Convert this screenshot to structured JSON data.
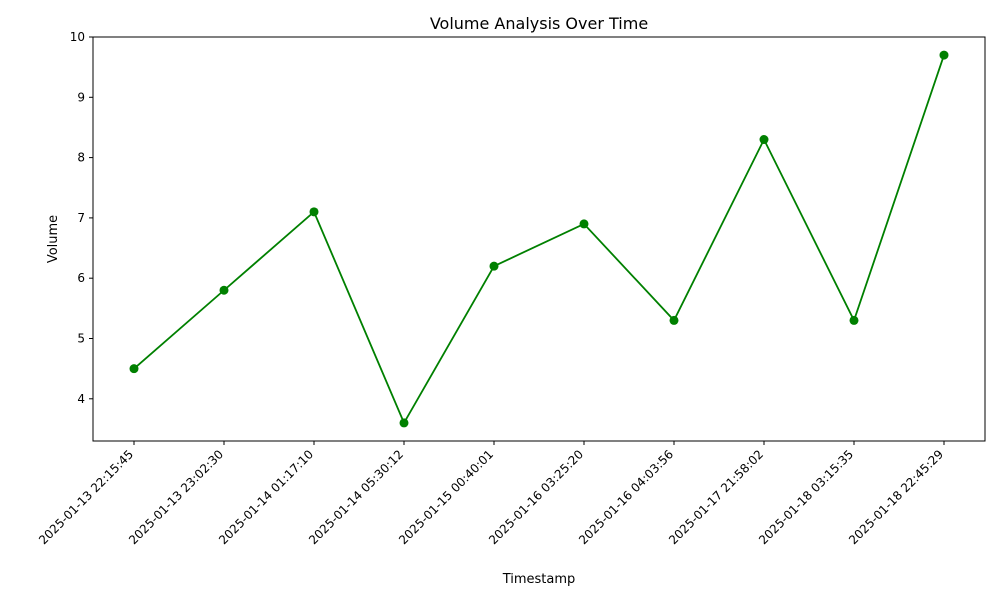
{
  "chart_data": {
    "type": "line",
    "title": "Volume Analysis Over Time",
    "xlabel": "Timestamp",
    "ylabel": "Volume",
    "categories": [
      "2025-01-13 22:15:45",
      "2025-01-13 23:02:30",
      "2025-01-14 01:17:10",
      "2025-01-14 05:30:12",
      "2025-01-15 00:40:01",
      "2025-01-16 03:25:20",
      "2025-01-16 04:03:56",
      "2025-01-17 21:58:02",
      "2025-01-18 03:15:35",
      "2025-01-18 22:45:29"
    ],
    "series": [
      {
        "values": [
          4.5,
          5.8,
          7.1,
          3.6,
          6.2,
          6.9,
          5.3,
          8.3,
          5.3,
          9.7
        ],
        "color": "#008000",
        "marker": "circle"
      }
    ],
    "ylim": [
      3.3,
      10.0
    ],
    "yticks": [
      4,
      5,
      6,
      7,
      8,
      9,
      10
    ],
    "grid": false,
    "legend": "none"
  }
}
